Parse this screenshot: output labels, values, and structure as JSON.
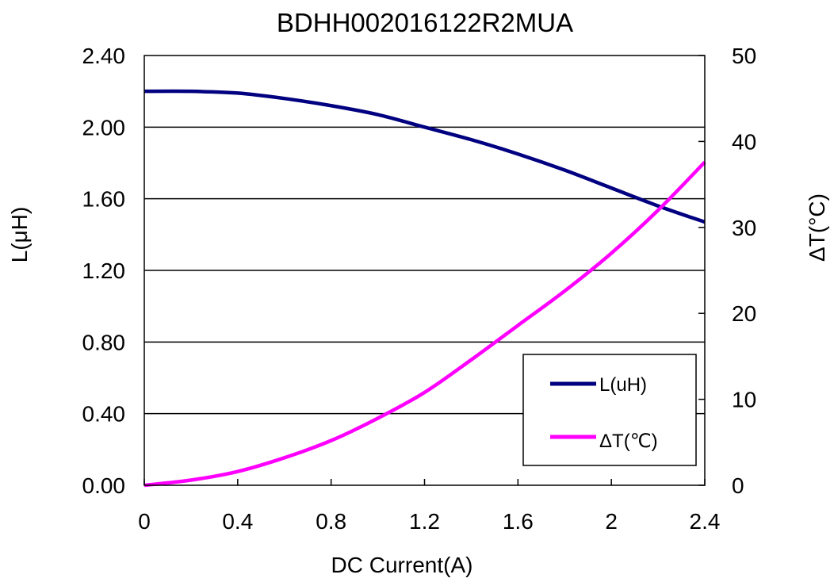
{
  "chart_data": {
    "type": "line",
    "title": "BDHH002016122R2MUA",
    "xlabel": "DC Current(A)",
    "ylabel": "L(μH)",
    "y2label": "ΔT(°C)",
    "xlim": [
      0,
      2.4
    ],
    "ylim": [
      0,
      2.4
    ],
    "y2lim": [
      0,
      50
    ],
    "xticks": [
      "0",
      "0.4",
      "0.8",
      "1.2",
      "1.6",
      "2",
      "2.4"
    ],
    "yticks": [
      "0.00",
      "0.40",
      "0.80",
      "1.20",
      "1.60",
      "2.00",
      "2.40"
    ],
    "y2ticks": [
      "0",
      "10",
      "20",
      "30",
      "40",
      "50"
    ],
    "grid": "horizontal major lines",
    "legend_position": "bottom-right",
    "series": [
      {
        "name": "L(uH)",
        "axis": "left",
        "color": "#000080",
        "x": [
          0,
          0.2,
          0.4,
          0.6,
          0.8,
          1.0,
          1.2,
          1.4,
          1.6,
          1.8,
          2.0,
          2.2,
          2.4
        ],
        "y": [
          2.2,
          2.2,
          2.19,
          2.16,
          2.12,
          2.07,
          2.0,
          1.93,
          1.85,
          1.76,
          1.66,
          1.56,
          1.47
        ]
      },
      {
        "name": "ΔT(℃)",
        "axis": "right",
        "color": "#ff00ff",
        "x": [
          0,
          0.2,
          0.4,
          0.6,
          0.8,
          1.0,
          1.2,
          1.4,
          1.6,
          1.8,
          2.0,
          2.2,
          2.4
        ],
        "y": [
          0,
          0.6,
          1.6,
          3.2,
          5.2,
          7.8,
          10.8,
          14.6,
          18.6,
          22.6,
          27.0,
          32.0,
          37.6
        ]
      }
    ]
  }
}
